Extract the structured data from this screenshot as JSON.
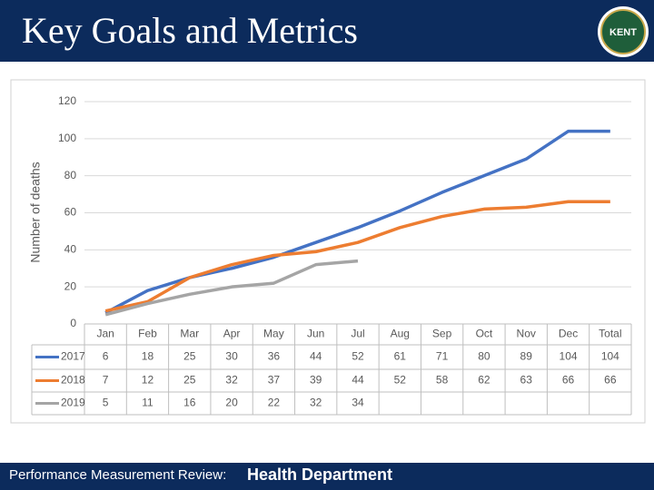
{
  "header": {
    "title": "Key Goals and Metrics",
    "logo_text": "KENT"
  },
  "footer": {
    "label": "Performance Measurement Review:",
    "department": "Health Department"
  },
  "chart_data": {
    "type": "line",
    "y_label": "Number of deaths",
    "categories": [
      "Jan",
      "Feb",
      "Mar",
      "Apr",
      "May",
      "Jun",
      "Jul",
      "Aug",
      "Sep",
      "Oct",
      "Nov",
      "Dec",
      "Total"
    ],
    "series": [
      {
        "name": "2017",
        "color": "#4472c4",
        "values": [
          6,
          18,
          25,
          30,
          36,
          44,
          52,
          61,
          71,
          80,
          89,
          104,
          104
        ]
      },
      {
        "name": "2018",
        "color": "#ed7d31",
        "values": [
          7,
          12,
          25,
          32,
          37,
          39,
          44,
          52,
          58,
          62,
          63,
          66,
          66
        ]
      },
      {
        "name": "2019",
        "color": "#a5a5a5",
        "values": [
          5,
          11,
          16,
          20,
          22,
          32,
          34,
          null,
          null,
          null,
          null,
          null,
          null
        ]
      }
    ],
    "ylim": [
      0,
      120
    ],
    "yticks": [
      0,
      20,
      40,
      60,
      80,
      100,
      120
    ],
    "grid": true
  }
}
